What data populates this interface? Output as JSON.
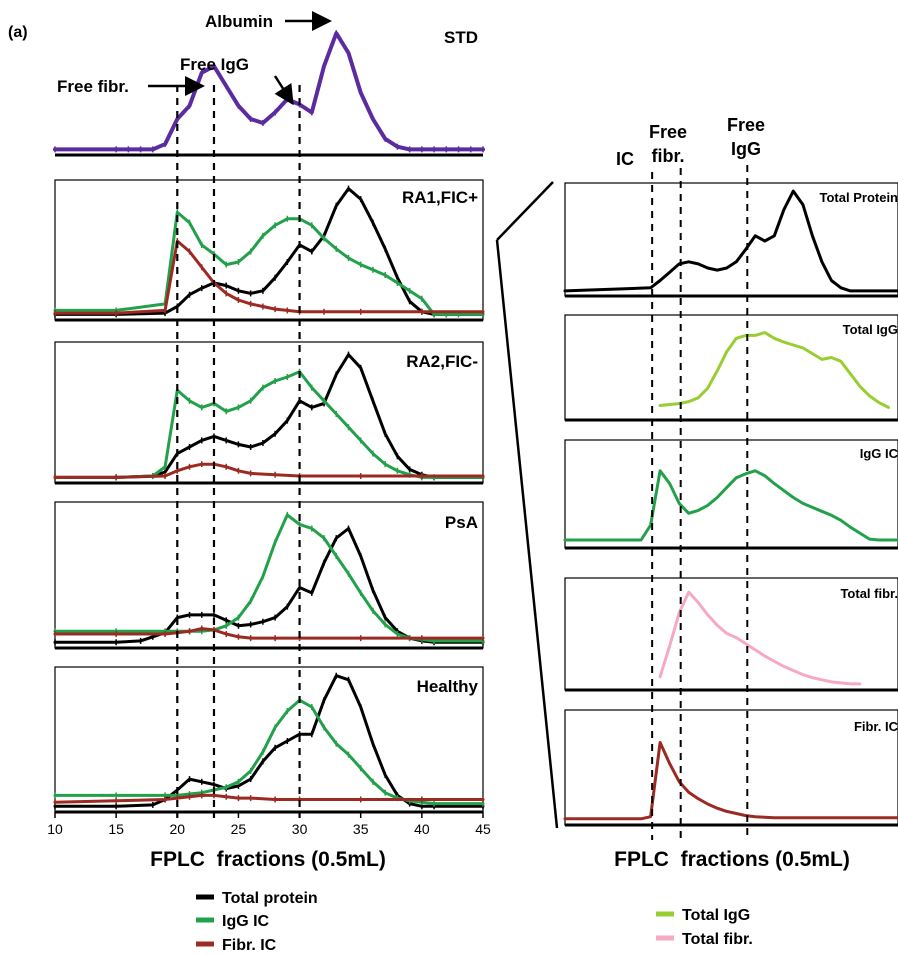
{
  "figure_label": "(a)",
  "colors": {
    "total_protein": "#000000",
    "igg_ic": "#22a04a",
    "fibr_ic": "#9b2a22",
    "std": "#5a2ca0",
    "total_igg": "#9acd32",
    "total_fibr": "#f4a9c4"
  },
  "chart_data": [
    {
      "type": "line",
      "panel": "STD",
      "title": "STD",
      "xlim": [
        10,
        45
      ],
      "annotations": [
        "Free fibr.",
        "Free IgG",
        "Albumin"
      ],
      "series": [
        {
          "key": "std",
          "x": [
            10,
            15,
            16,
            17,
            18,
            19,
            20,
            21,
            22,
            23,
            24,
            25,
            26,
            27,
            28,
            29,
            30,
            31,
            32,
            33,
            34,
            35,
            36,
            37,
            38,
            39,
            40,
            41,
            42,
            43,
            44,
            45
          ],
          "y": [
            0.02,
            0.02,
            0.02,
            0.02,
            0.02,
            0.06,
            0.25,
            0.35,
            0.6,
            0.65,
            0.5,
            0.35,
            0.25,
            0.22,
            0.3,
            0.4,
            0.36,
            0.3,
            0.65,
            0.9,
            0.75,
            0.45,
            0.25,
            0.1,
            0.04,
            0.02,
            0.02,
            0.02,
            0.02,
            0.02,
            0.02,
            0.02
          ]
        }
      ]
    },
    {
      "type": "line",
      "panel": "RA1",
      "title": "RA1,FIC+",
      "xlim": [
        10,
        45
      ],
      "series": [
        {
          "key": "total_protein",
          "x": [
            10,
            15,
            19,
            20,
            21,
            22,
            23,
            24,
            25,
            26,
            27,
            28,
            29,
            30,
            31,
            32,
            33,
            34,
            35,
            36,
            37,
            38,
            39,
            40,
            41,
            42,
            45
          ],
          "y": [
            0.02,
            0.02,
            0.03,
            0.08,
            0.17,
            0.22,
            0.26,
            0.24,
            0.2,
            0.18,
            0.2,
            0.3,
            0.42,
            0.55,
            0.5,
            0.62,
            0.85,
            0.98,
            0.9,
            0.72,
            0.52,
            0.3,
            0.12,
            0.04,
            0.02,
            0.02,
            0.02
          ]
        },
        {
          "key": "igg_ic",
          "x": [
            10,
            15,
            19,
            20,
            21,
            22,
            23,
            24,
            25,
            26,
            27,
            28,
            29,
            30,
            31,
            32,
            33,
            34,
            35,
            36,
            37,
            38,
            39,
            40,
            41,
            42,
            43,
            45
          ],
          "y": [
            0.05,
            0.05,
            0.1,
            0.8,
            0.72,
            0.55,
            0.48,
            0.4,
            0.42,
            0.5,
            0.62,
            0.7,
            0.75,
            0.75,
            0.7,
            0.6,
            0.52,
            0.45,
            0.4,
            0.36,
            0.32,
            0.26,
            0.2,
            0.14,
            0.02,
            0.02,
            0.02,
            0.02
          ]
        },
        {
          "key": "fibr_ic",
          "x": [
            10,
            15,
            19,
            20,
            21,
            22,
            23,
            24,
            25,
            26,
            27,
            28,
            29,
            30,
            32,
            35,
            40,
            45
          ],
          "y": [
            0.03,
            0.03,
            0.05,
            0.58,
            0.5,
            0.38,
            0.26,
            0.18,
            0.13,
            0.1,
            0.08,
            0.06,
            0.05,
            0.04,
            0.04,
            0.04,
            0.04,
            0.04
          ]
        }
      ]
    },
    {
      "type": "line",
      "panel": "RA2",
      "title": "RA2,FIC-",
      "xlim": [
        10,
        45
      ],
      "series": [
        {
          "key": "total_protein",
          "x": [
            10,
            15,
            18,
            19,
            20,
            21,
            22,
            23,
            24,
            25,
            26,
            27,
            28,
            29,
            30,
            31,
            32,
            33,
            34,
            35,
            36,
            37,
            38,
            39,
            40,
            41,
            45
          ],
          "y": [
            0.02,
            0.02,
            0.03,
            0.06,
            0.2,
            0.25,
            0.3,
            0.33,
            0.3,
            0.27,
            0.25,
            0.28,
            0.35,
            0.45,
            0.6,
            0.55,
            0.58,
            0.8,
            0.95,
            0.85,
            0.6,
            0.35,
            0.18,
            0.08,
            0.04,
            0.02,
            0.02
          ]
        },
        {
          "key": "igg_ic",
          "x": [
            10,
            15,
            18,
            19,
            20,
            21,
            22,
            23,
            24,
            25,
            26,
            27,
            28,
            29,
            30,
            31,
            32,
            33,
            34,
            35,
            36,
            37,
            38,
            39,
            40,
            41,
            45
          ],
          "y": [
            0.02,
            0.02,
            0.03,
            0.1,
            0.68,
            0.6,
            0.55,
            0.58,
            0.52,
            0.55,
            0.6,
            0.7,
            0.75,
            0.78,
            0.82,
            0.7,
            0.6,
            0.5,
            0.4,
            0.3,
            0.2,
            0.12,
            0.07,
            0.04,
            0.02,
            0.02,
            0.02
          ]
        },
        {
          "key": "fibr_ic",
          "x": [
            10,
            15,
            19,
            20,
            21,
            22,
            23,
            24,
            25,
            26,
            28,
            30,
            35,
            40,
            45
          ],
          "y": [
            0.02,
            0.02,
            0.03,
            0.07,
            0.1,
            0.12,
            0.12,
            0.1,
            0.07,
            0.05,
            0.04,
            0.03,
            0.03,
            0.03,
            0.03
          ]
        }
      ]
    },
    {
      "type": "line",
      "panel": "PsA",
      "title": "PsA",
      "xlim": [
        10,
        45
      ],
      "series": [
        {
          "key": "total_protein",
          "x": [
            10,
            15,
            17,
            18,
            19,
            20,
            21,
            22,
            23,
            24,
            25,
            26,
            27,
            28,
            29,
            30,
            31,
            32,
            33,
            34,
            35,
            36,
            37,
            38,
            39,
            40,
            41,
            45
          ],
          "y": [
            0.02,
            0.02,
            0.03,
            0.06,
            0.09,
            0.2,
            0.22,
            0.22,
            0.22,
            0.18,
            0.14,
            0.15,
            0.17,
            0.2,
            0.28,
            0.42,
            0.38,
            0.6,
            0.78,
            0.85,
            0.65,
            0.4,
            0.2,
            0.1,
            0.05,
            0.03,
            0.02,
            0.02
          ]
        },
        {
          "key": "igg_ic",
          "x": [
            10,
            15,
            19,
            20,
            21,
            22,
            23,
            24,
            25,
            26,
            27,
            28,
            29,
            30,
            31,
            32,
            33,
            34,
            35,
            36,
            37,
            38,
            39,
            40,
            41,
            45
          ],
          "y": [
            0.1,
            0.1,
            0.1,
            0.1,
            0.1,
            0.1,
            0.11,
            0.14,
            0.2,
            0.32,
            0.5,
            0.75,
            0.95,
            0.88,
            0.85,
            0.78,
            0.65,
            0.52,
            0.38,
            0.25,
            0.15,
            0.08,
            0.05,
            0.04,
            0.03,
            0.03
          ]
        },
        {
          "key": "fibr_ic",
          "x": [
            10,
            15,
            19,
            20,
            21,
            22,
            23,
            24,
            25,
            26,
            28,
            30,
            35,
            40,
            45
          ],
          "y": [
            0.08,
            0.08,
            0.08,
            0.09,
            0.1,
            0.12,
            0.11,
            0.08,
            0.06,
            0.05,
            0.05,
            0.05,
            0.05,
            0.05,
            0.05
          ]
        }
      ]
    },
    {
      "type": "line",
      "panel": "Healthy",
      "title": "Healthy",
      "xlim": [
        10,
        45
      ],
      "series": [
        {
          "key": "total_protein",
          "x": [
            10,
            15,
            18,
            19,
            20,
            21,
            22,
            23,
            24,
            25,
            26,
            27,
            28,
            29,
            30,
            31,
            32,
            33,
            34,
            35,
            36,
            37,
            38,
            39,
            40,
            41,
            45
          ],
          "y": [
            0.02,
            0.02,
            0.03,
            0.07,
            0.14,
            0.22,
            0.2,
            0.18,
            0.15,
            0.17,
            0.22,
            0.35,
            0.45,
            0.5,
            0.55,
            0.55,
            0.8,
            0.98,
            0.95,
            0.75,
            0.48,
            0.25,
            0.1,
            0.04,
            0.02,
            0.02,
            0.02
          ]
        },
        {
          "key": "igg_ic",
          "x": [
            10,
            15,
            19,
            20,
            21,
            22,
            23,
            24,
            25,
            26,
            27,
            28,
            29,
            30,
            31,
            32,
            33,
            34,
            35,
            36,
            37,
            38,
            39,
            40,
            41,
            45
          ],
          "y": [
            0.1,
            0.1,
            0.1,
            0.1,
            0.11,
            0.12,
            0.14,
            0.16,
            0.2,
            0.28,
            0.42,
            0.6,
            0.72,
            0.8,
            0.75,
            0.6,
            0.48,
            0.4,
            0.3,
            0.2,
            0.12,
            0.08,
            0.06,
            0.05,
            0.04,
            0.04
          ]
        },
        {
          "key": "fibr_ic",
          "x": [
            10,
            15,
            19,
            20,
            21,
            22,
            23,
            24,
            25,
            26,
            28,
            30,
            35,
            40,
            45
          ],
          "y": [
            0.05,
            0.06,
            0.07,
            0.08,
            0.09,
            0.1,
            0.1,
            0.09,
            0.08,
            0.08,
            0.07,
            0.07,
            0.07,
            0.07,
            0.07
          ]
        }
      ]
    },
    {
      "type": "line",
      "panel": "R_TotalProtein",
      "title": "Total Protein",
      "xlim": [
        10,
        45
      ],
      "series": [
        {
          "key": "total_protein",
          "x": [
            10,
            19,
            20,
            21,
            22,
            23,
            24,
            25,
            26,
            27,
            28,
            29,
            30,
            31,
            32,
            33,
            34,
            35,
            36,
            37,
            38,
            39,
            40,
            41,
            42,
            45
          ],
          "y": [
            0.02,
            0.05,
            0.12,
            0.2,
            0.28,
            0.3,
            0.28,
            0.24,
            0.22,
            0.24,
            0.3,
            0.42,
            0.55,
            0.5,
            0.55,
            0.8,
            0.98,
            0.85,
            0.55,
            0.3,
            0.12,
            0.05,
            0.02,
            0.02,
            0.02,
            0.02
          ]
        }
      ]
    },
    {
      "type": "line",
      "panel": "R_TotalIgG",
      "title": "Total IgG",
      "xlim": [
        10,
        45
      ],
      "series": [
        {
          "key": "total_igg",
          "x": [
            20,
            21,
            22,
            23,
            24,
            25,
            26,
            27,
            28,
            29,
            30,
            31,
            32,
            33,
            34,
            35,
            36,
            37,
            38,
            39,
            40,
            41,
            42,
            43,
            44
          ],
          "y": [
            0.12,
            0.13,
            0.14,
            0.16,
            0.2,
            0.3,
            0.48,
            0.68,
            0.82,
            0.85,
            0.85,
            0.88,
            0.82,
            0.78,
            0.75,
            0.72,
            0.66,
            0.6,
            0.62,
            0.58,
            0.45,
            0.32,
            0.22,
            0.15,
            0.1
          ]
        }
      ]
    },
    {
      "type": "line",
      "panel": "R_IgGIC",
      "title": "IgG IC",
      "xlim": [
        10,
        45
      ],
      "series": [
        {
          "key": "igg_ic",
          "x": [
            10,
            18,
            19,
            20,
            21,
            22,
            23,
            24,
            25,
            26,
            27,
            28,
            29,
            30,
            31,
            32,
            33,
            34,
            35,
            36,
            37,
            38,
            39,
            40,
            41,
            42,
            43,
            44,
            45
          ],
          "y": [
            0.05,
            0.05,
            0.2,
            0.75,
            0.62,
            0.42,
            0.32,
            0.35,
            0.4,
            0.48,
            0.58,
            0.68,
            0.72,
            0.75,
            0.7,
            0.62,
            0.55,
            0.48,
            0.42,
            0.38,
            0.34,
            0.3,
            0.25,
            0.18,
            0.12,
            0.06,
            0.05,
            0.05,
            0.05
          ]
        }
      ]
    },
    {
      "type": "line",
      "panel": "R_TotalFibr",
      "title": "Total fibr.",
      "xlim": [
        10,
        45
      ],
      "series": [
        {
          "key": "total_fibr",
          "x": [
            20,
            21,
            22,
            23,
            24,
            25,
            26,
            27,
            28,
            29,
            30,
            31,
            32,
            33,
            34,
            35,
            36,
            37,
            38,
            39,
            40,
            41
          ],
          "y": [
            0.1,
            0.4,
            0.72,
            0.92,
            0.82,
            0.7,
            0.6,
            0.52,
            0.48,
            0.42,
            0.36,
            0.3,
            0.25,
            0.2,
            0.16,
            0.12,
            0.09,
            0.07,
            0.05,
            0.04,
            0.03,
            0.03
          ]
        }
      ]
    },
    {
      "type": "line",
      "panel": "R_FibrIC",
      "title": "Fibr. IC",
      "xlim": [
        10,
        45
      ],
      "series": [
        {
          "key": "fibr_ic",
          "x": [
            10,
            18,
            19,
            20,
            21,
            22,
            23,
            24,
            25,
            26,
            27,
            28,
            29,
            30,
            32,
            35,
            40,
            45
          ],
          "y": [
            0.03,
            0.03,
            0.05,
            0.75,
            0.55,
            0.38,
            0.28,
            0.22,
            0.17,
            0.13,
            0.1,
            0.08,
            0.06,
            0.05,
            0.04,
            0.04,
            0.04,
            0.04
          ]
        }
      ]
    }
  ],
  "left": {
    "xticks": [
      "10",
      "15",
      "20",
      "25",
      "30",
      "35",
      "40",
      "45"
    ],
    "xlabel": "FPLC  fractions (0.5mL)",
    "legend": [
      {
        "key": "total_protein",
        "label": "Total protein"
      },
      {
        "key": "igg_ic",
        "label": "IgG IC"
      },
      {
        "key": "fibr_ic",
        "label": "Fibr. IC"
      }
    ]
  },
  "right": {
    "top_labels": {
      "ic": "IC",
      "free_fibr_1": "Free",
      "free_fibr_2": "fibr.",
      "free_igg_1": "Free",
      "free_igg_2": "IgG"
    },
    "xlabel": "FPLC  fractions (0.5mL)",
    "legend": [
      {
        "key": "total_igg",
        "label": "Total IgG"
      },
      {
        "key": "total_fibr",
        "label": "Total fibr."
      }
    ]
  }
}
